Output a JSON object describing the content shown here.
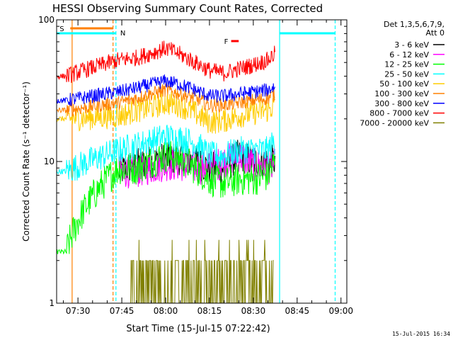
{
  "chart_data": {
    "type": "line",
    "title": "HESSI Observing Summary Count Rates, Corrected",
    "xlabel": "Start Time (15-Jul-15 07:22:42)",
    "ylabel": "Corrected Count Rate (s⁻¹ detector⁻¹)",
    "yscale": "log",
    "ylim": [
      1,
      100
    ],
    "xlim": [
      "07:22:42",
      "09:02:00"
    ],
    "x_ticks": [
      "07:30",
      "07:45",
      "08:00",
      "08:15",
      "08:30",
      "08:45",
      "09:00"
    ],
    "y_ticks": [
      "1",
      "10",
      "100"
    ],
    "grid": false,
    "legend_position": "right",
    "legend_title": "Det 1,3,5,6,7,9,",
    "legend_subtitle": "Att 0",
    "footer_date": "15-Jul-2015 16:34",
    "markers": [
      {
        "label": "S",
        "color": "#ff8000",
        "from": "07:23",
        "to": "07:42"
      },
      {
        "label": "N",
        "color": "#00ffff",
        "from": "07:42",
        "to": "07:43"
      },
      {
        "label": "F",
        "color": "#ff0000",
        "from": "08:20",
        "to": "08:25"
      }
    ],
    "boundaries": [
      {
        "time": "07:28",
        "color": "#ff8000",
        "style": "solid"
      },
      {
        "time": "07:42",
        "color": "#ff8000",
        "style": "dashed"
      },
      {
        "time": "07:43",
        "color": "#00ffff",
        "style": "dashed"
      },
      {
        "time": "08:39",
        "color": "#00ffff",
        "style": "solid"
      },
      {
        "time": "08:58",
        "color": "#00ffff",
        "style": "dashed"
      }
    ],
    "series": [
      {
        "name": "3 - 6 keV",
        "color": "#000000",
        "x": [
          "07:22:42",
          "07:26:00",
          "07:44:00",
          "07:50",
          "07:55",
          "08:00",
          "08:05",
          "08:10",
          "08:15",
          "08:20",
          "08:25",
          "08:30",
          "08:35",
          "08:37:30"
        ],
        "y": [
          null,
          null,
          8.5,
          9.5,
          10,
          10.5,
          10.5,
          10,
          9,
          9,
          11,
          10,
          10,
          10
        ]
      },
      {
        "name": "6 - 12 keV",
        "color": "#ff00ff",
        "x": [
          "07:44:00",
          "07:50",
          "07:55",
          "08:00",
          "08:05",
          "08:10",
          "08:15",
          "08:20",
          "08:25",
          "08:30",
          "08:35",
          "08:37:30"
        ],
        "y": [
          8.5,
          8.5,
          9,
          9.5,
          9.5,
          9,
          9,
          10,
          11,
          9.5,
          9,
          9.5
        ]
      },
      {
        "name": "12 - 25 keV",
        "color": "#00ff00",
        "x": [
          "07:22:42",
          "07:26:00",
          "07:44:00",
          "07:50",
          "07:55",
          "08:00",
          "08:05",
          "08:10",
          "08:15",
          "08:20",
          "08:25",
          "08:30",
          "08:35",
          "08:37:30"
        ],
        "y": [
          2.3,
          2.3,
          9,
          9,
          10,
          11,
          10.5,
          9,
          7.5,
          7,
          7.5,
          7.5,
          8,
          10
        ]
      },
      {
        "name": "25 - 50 keV",
        "color": "#00ffff",
        "x": [
          "07:22:42",
          "07:26:00",
          "07:44:00",
          "07:50",
          "07:55",
          "08:00",
          "08:05",
          "08:10",
          "08:15",
          "08:20",
          "08:25",
          "08:30",
          "08:35",
          "08:37:30"
        ],
        "y": [
          8.5,
          8.5,
          12,
          13,
          14,
          15,
          14.5,
          13.5,
          11,
          11,
          12,
          12,
          12,
          14
        ]
      },
      {
        "name": "50 - 100 keV",
        "color": "#ffcc00",
        "x": [
          "07:22:42",
          "07:26:00",
          "07:44:00",
          "07:50",
          "07:55",
          "08:00",
          "08:05",
          "08:10",
          "08:15",
          "08:20",
          "08:25",
          "08:30",
          "08:35",
          "08:37:30"
        ],
        "y": [
          20,
          20,
          21,
          23,
          24,
          26,
          25,
          22,
          19,
          19.5,
          21,
          22,
          23,
          25
        ]
      },
      {
        "name": "100 - 300 keV",
        "color": "#ff8000",
        "x": [
          "07:22:42",
          "07:26:00",
          "07:44:00",
          "07:50",
          "07:55",
          "08:00",
          "08:05",
          "08:10",
          "08:15",
          "08:20",
          "08:25",
          "08:30",
          "08:35",
          "08:37:30"
        ],
        "y": [
          23,
          23,
          26,
          28,
          30,
          32,
          30,
          28,
          25,
          25,
          26,
          27,
          28,
          30
        ]
      },
      {
        "name": "300 - 800 keV",
        "color": "#0000ff",
        "x": [
          "07:22:42",
          "07:26:00",
          "07:44:00",
          "07:50",
          "07:55",
          "08:00",
          "08:05",
          "08:10",
          "08:15",
          "08:20",
          "08:25",
          "08:30",
          "08:35",
          "08:37:30"
        ],
        "y": [
          27,
          27,
          31,
          33,
          35,
          37,
          35,
          32,
          29,
          29,
          30,
          31,
          32,
          34
        ]
      },
      {
        "name": "800 - 7000 keV",
        "color": "#ff0000",
        "x": [
          "07:22:42",
          "07:26:00",
          "07:44:00",
          "07:50",
          "07:55",
          "08:00",
          "08:05",
          "08:10",
          "08:15",
          "08:20",
          "08:25",
          "08:30",
          "08:35",
          "08:37:30"
        ],
        "y": [
          40,
          40,
          52,
          54,
          58,
          63,
          57,
          50,
          44,
          42,
          45,
          48,
          52,
          58
        ]
      },
      {
        "name": "7000 - 20000 keV",
        "color": "#808000",
        "x": [
          "07:48",
          "07:52",
          "07:56",
          "08:00",
          "08:04",
          "08:08",
          "08:12",
          "08:32",
          "08:35",
          "08:37"
        ],
        "y": [
          2,
          1.9,
          2,
          2,
          2.1,
          2,
          1.9,
          1.9,
          2,
          2
        ]
      }
    ]
  }
}
